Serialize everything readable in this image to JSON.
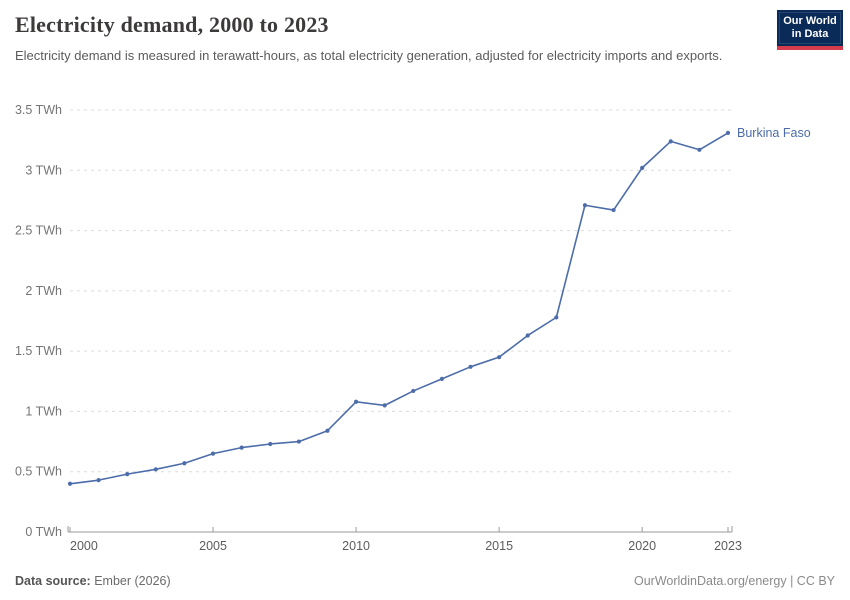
{
  "header": {
    "title": "Electricity demand, 2000 to 2023",
    "subtitle": "Electricity demand is measured in terawatt-hours, as total electricity generation, adjusted for electricity imports and exports.",
    "logo": {
      "line1": "Our World",
      "line2": "in Data",
      "background_color": "#0a2a57",
      "accent_color": "#d73c4c"
    }
  },
  "chart_data": {
    "type": "line",
    "title": "Electricity demand, 2000 to 2023",
    "xlabel": "",
    "ylabel": "TWh",
    "xlim": [
      2000,
      2023
    ],
    "ylim": [
      0,
      3.5
    ],
    "grid": "horizontal-dashed",
    "legend_position": "end-of-line-label",
    "x_ticks": [
      2000,
      2005,
      2010,
      2015,
      2020,
      2023
    ],
    "y_ticks": [
      {
        "v": 0,
        "label": "0 TWh"
      },
      {
        "v": 0.5,
        "label": "0.5 TWh"
      },
      {
        "v": 1,
        "label": "1 TWh"
      },
      {
        "v": 1.5,
        "label": "1.5 TWh"
      },
      {
        "v": 2,
        "label": "2 TWh"
      },
      {
        "v": 2.5,
        "label": "2.5 TWh"
      },
      {
        "v": 3,
        "label": "3 TWh"
      },
      {
        "v": 3.5,
        "label": "3.5 TWh"
      }
    ],
    "series": [
      {
        "name": "Burkina Faso",
        "color": "#4c6da9",
        "x": [
          2000,
          2001,
          2002,
          2003,
          2004,
          2005,
          2006,
          2007,
          2008,
          2009,
          2010,
          2011,
          2012,
          2013,
          2014,
          2015,
          2016,
          2017,
          2018,
          2019,
          2020,
          2021,
          2022,
          2023
        ],
        "values": [
          0.4,
          0.43,
          0.48,
          0.52,
          0.57,
          0.65,
          0.7,
          0.73,
          0.75,
          0.84,
          1.08,
          1.05,
          1.17,
          1.27,
          1.37,
          1.45,
          1.63,
          1.78,
          2.71,
          2.67,
          3.02,
          3.24,
          3.17,
          3.31
        ]
      }
    ]
  },
  "footer": {
    "source_label": "Data source:",
    "source_value": " Ember (2026)",
    "attribution": "OurWorldinData.org/energy | CC BY"
  },
  "colors": {
    "gridline": "#dcdcdc",
    "axis": "#9a9a9a",
    "y_tick_label": "#757575",
    "x_tick_label": "#5c5c5c"
  }
}
